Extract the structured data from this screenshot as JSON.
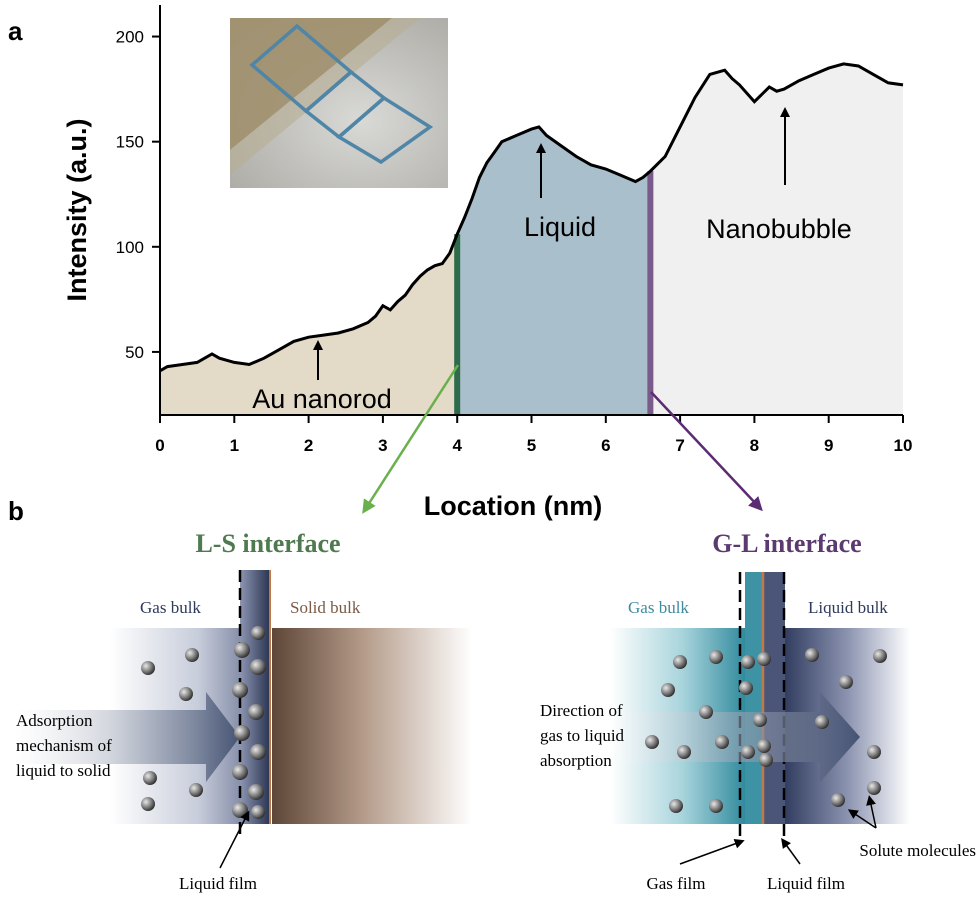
{
  "panel_a": {
    "label": "a",
    "region_labels": {
      "au": "Au nanorod",
      "liquid": "Liquid",
      "bubble": "Nanobubble"
    }
  },
  "panel_b": {
    "label": "b",
    "ls": {
      "title": "L-S interface",
      "gas_bulk": "Gas bulk",
      "solid_bulk": "Solid bulk",
      "mechanism_lines": [
        "Adsorption",
        "mechanism of",
        "liquid to solid"
      ],
      "film": "Liquid film"
    },
    "gl": {
      "title": "G-L interface",
      "gas_bulk": "Gas bulk",
      "liquid_bulk": "Liquid bulk",
      "direction_lines": [
        "Direction of",
        "gas to liquid",
        "absorption"
      ],
      "gas_film": "Gas film",
      "liquid_film": "Liquid film",
      "solute": "Solute molecules"
    }
  },
  "colors": {
    "au_fill": "#e3dbc8",
    "liquid_fill": "#a9c0cc",
    "bubble_fill": "#f0f0f0",
    "ls_line": "#2e6b4a",
    "gl_line": "#7a5a8a",
    "ls_arrow": "#6ab04c",
    "gl_arrow": "#5b2c74",
    "ls_title": "#4f7a4f",
    "gl_title": "#5b3a70"
  },
  "chart_data": {
    "type": "area",
    "xlabel": "Location (nm)",
    "ylabel": "Intensity (a.u.)",
    "xlim": [
      0,
      10
    ],
    "ylim": [
      20,
      215
    ],
    "xticks": [
      0,
      1,
      2,
      3,
      4,
      5,
      6,
      7,
      8,
      9,
      10
    ],
    "yticks": [
      50,
      100,
      150,
      200
    ],
    "grid": false,
    "boundaries": [
      4.0,
      6.6
    ],
    "x": [
      0,
      0.1,
      0.3,
      0.5,
      0.7,
      0.8,
      1.0,
      1.2,
      1.4,
      1.6,
      1.8,
      2.0,
      2.2,
      2.4,
      2.6,
      2.8,
      2.9,
      3.0,
      3.1,
      3.2,
      3.3,
      3.4,
      3.5,
      3.6,
      3.7,
      3.8,
      3.9,
      4.0,
      4.1,
      4.2,
      4.3,
      4.4,
      4.5,
      4.6,
      4.8,
      5.0,
      5.1,
      5.2,
      5.4,
      5.6,
      5.8,
      6.0,
      6.2,
      6.4,
      6.5,
      6.6,
      6.8,
      7.0,
      7.2,
      7.4,
      7.6,
      7.7,
      7.8,
      8.0,
      8.2,
      8.3,
      8.4,
      8.6,
      8.8,
      9.0,
      9.2,
      9.4,
      9.6,
      9.8,
      10.0
    ],
    "values": [
      41,
      43,
      44,
      45,
      49,
      47,
      45,
      44,
      47,
      51,
      55,
      57,
      58,
      59,
      61,
      64,
      67,
      72,
      70,
      74,
      77,
      82,
      86,
      89,
      91,
      92,
      97,
      106,
      114,
      123,
      133,
      140,
      145,
      150,
      153,
      156,
      157,
      153,
      148,
      143,
      139,
      137,
      134,
      131,
      133,
      136,
      143,
      157,
      171,
      182,
      184,
      180,
      177,
      169,
      176,
      174,
      175,
      179,
      182,
      185,
      187,
      186,
      182,
      178,
      177
    ]
  }
}
